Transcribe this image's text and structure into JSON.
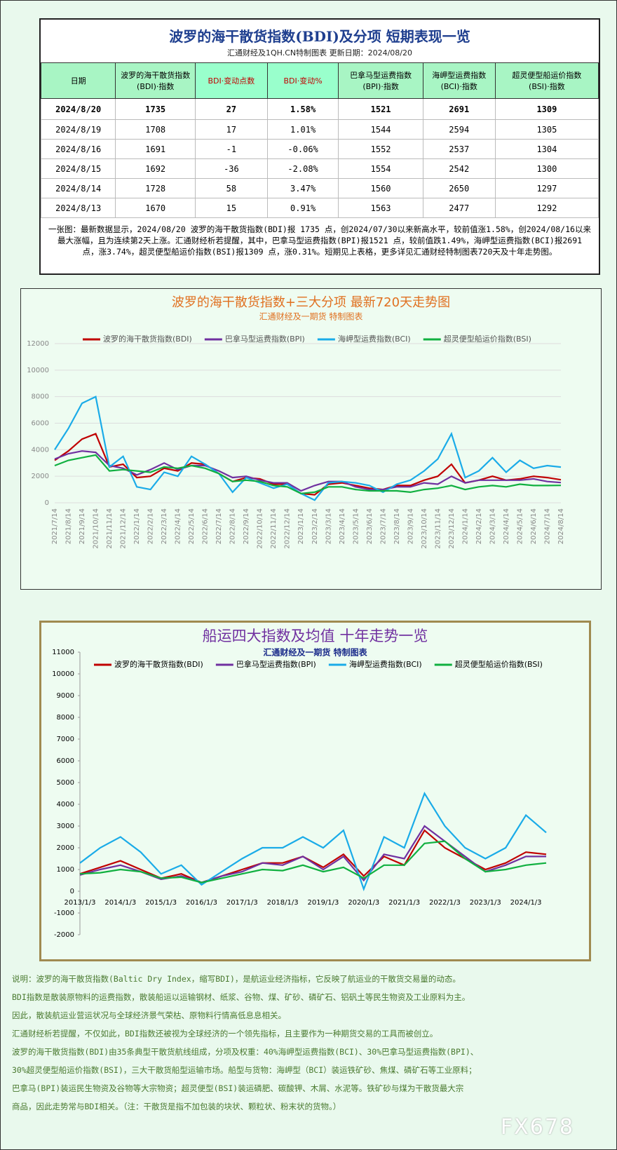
{
  "header": {
    "title": "波罗的海干散货指数(BDI)及分项  短期表现一览",
    "subtitle": "汇通财经及1QH.CN特制图表     更新日期：2024/08/20"
  },
  "table": {
    "columns": [
      "日期",
      "波罗的海干散货指数\n(BDI)·指数",
      "BDI·变动点数",
      "BDI·变动%",
      "巴拿马型运费指数\n(BPI)·指数",
      "海岬型运费指数\n(BCI)·指数",
      "超灵便型船运价指数\n(BSI)·指数"
    ],
    "rows": [
      [
        "2024/8/20",
        "1735",
        "27",
        "1.58%",
        "1521",
        "2691",
        "1309"
      ],
      [
        "2024/8/19",
        "1708",
        "17",
        "1.01%",
        "1544",
        "2594",
        "1305"
      ],
      [
        "2024/8/16",
        "1691",
        "-1",
        "-0.06%",
        "1552",
        "2537",
        "1304"
      ],
      [
        "2024/8/15",
        "1692",
        "-36",
        "-2.08%",
        "1554",
        "2542",
        "1300"
      ],
      [
        "2024/8/14",
        "1728",
        "58",
        "3.47%",
        "1560",
        "2650",
        "1297"
      ],
      [
        "2024/8/13",
        "1670",
        "15",
        "0.91%",
        "1563",
        "2477",
        "1292"
      ]
    ]
  },
  "summary": "一张图：最新数据显示，2024/08/20 波罗的海干散货指数(BDI)报 1735 点，创2024/07/30以来新高水平，较前值涨1.58%，创2024/08/16以来最大涨幅，且为连续第2天上涨。汇通财经析若提醒，其中，巴拿马型运费指数(BPI)报1521 点，较前值跌1.49%，海岬型运费指数(BCI)报2691 点，涨3.74%，超灵便型船运价指数(BSI)报1309 点，涨0.31%。短期见上表格，更多详见汇通财经特制图表720天及十年走势图。",
  "chart_data": [
    {
      "type": "line",
      "title": "波罗的海干散货指数+三大分项  最新720天走势图",
      "subtitle": "汇通财经及一期货  特制图表",
      "categories": [
        "2021/7/14",
        "2021/8/14",
        "2021/9/14",
        "2021/10/14",
        "2021/11/14",
        "2021/12/14",
        "2022/1/14",
        "2022/2/14",
        "2022/3/14",
        "2022/4/14",
        "2022/5/14",
        "2022/6/14",
        "2022/7/14",
        "2022/8/14",
        "2022/9/14",
        "2022/10/14",
        "2022/11/14",
        "2022/12/14",
        "2023/1/14",
        "2023/2/14",
        "2023/3/14",
        "2023/4/14",
        "2023/5/14",
        "2023/6/14",
        "2023/7/14",
        "2023/8/14",
        "2023/9/14",
        "2023/10/14",
        "2023/11/14",
        "2023/12/14",
        "2024/1/14",
        "2024/2/14",
        "2024/3/14",
        "2024/4/14",
        "2024/5/14",
        "2024/6/14",
        "2024/7/14",
        "2024/8/14"
      ],
      "series": [
        {
          "name": "波罗的海干散货指数(BDI)",
          "color": "#c00000",
          "values": [
            3200,
            3900,
            4800,
            5200,
            2700,
            2900,
            1900,
            2000,
            2600,
            2400,
            3000,
            2900,
            2200,
            1600,
            1900,
            1800,
            1400,
            1400,
            700,
            600,
            1400,
            1500,
            1300,
            1100,
            1000,
            1300,
            1300,
            1700,
            2000,
            2900,
            1500,
            1700,
            2000,
            1700,
            1800,
            2000,
            1900,
            1735
          ]
        },
        {
          "name": "巴拿马型运费指数(BPI)",
          "color": "#7030a0",
          "values": [
            3300,
            3700,
            3900,
            3800,
            2800,
            2600,
            2100,
            2500,
            3000,
            2500,
            2800,
            2800,
            2400,
            1900,
            2000,
            1700,
            1500,
            1500,
            900,
            1300,
            1600,
            1600,
            1200,
            1000,
            1000,
            1200,
            1200,
            1500,
            1400,
            2000,
            1500,
            1700,
            1700,
            1700,
            1700,
            1800,
            1600,
            1521
          ]
        },
        {
          "name": "海岬型运费指数(BCI)",
          "color": "#1aabe8",
          "values": [
            4000,
            5600,
            7500,
            8000,
            2700,
            3500,
            1200,
            1000,
            2300,
            2000,
            3500,
            2900,
            2200,
            800,
            1900,
            1500,
            1100,
            1400,
            700,
            200,
            1500,
            1600,
            1500,
            1300,
            800,
            1400,
            1700,
            2400,
            3300,
            5200,
            1900,
            2400,
            3400,
            2300,
            3200,
            2600,
            2800,
            2691
          ]
        },
        {
          "name": "超灵便型船运价指数(BSI)",
          "color": "#10b040",
          "values": [
            2800,
            3200,
            3400,
            3600,
            2400,
            2500,
            2400,
            2300,
            2700,
            2600,
            2800,
            2600,
            2200,
            1600,
            1700,
            1600,
            1300,
            1200,
            700,
            800,
            1200,
            1200,
            1000,
            900,
            900,
            900,
            800,
            1000,
            1100,
            1300,
            1000,
            1200,
            1300,
            1200,
            1400,
            1300,
            1300,
            1309
          ]
        }
      ],
      "ylim": [
        0,
        12000
      ],
      "yticks": [
        0,
        2000,
        4000,
        6000,
        8000,
        10000,
        12000
      ],
      "grid": true,
      "legend": "top"
    },
    {
      "type": "line",
      "title": "船运四大指数及均值 十年走势一览",
      "subtitle": "汇通财经及一期货 特制图表",
      "categories": [
        "2013/1/3",
        null,
        "2014/1/3",
        null,
        "2015/1/3",
        null,
        "2016/1/3",
        null,
        "2017/1/3",
        null,
        "2018/1/3",
        null,
        "2019/1/3",
        null,
        "2020/1/3",
        null,
        "2021/1/3",
        null,
        "2022/1/3",
        null,
        "2023/1/3",
        null,
        "2024/1/3",
        null
      ],
      "series": [
        {
          "name": "波罗的海干散货指数(BDI)",
          "color": "#c00000",
          "values": [
            800,
            1100,
            1400,
            1000,
            600,
            800,
            400,
            700,
            1000,
            1300,
            1300,
            1600,
            1100,
            1700,
            700,
            1600,
            1200,
            2800,
            2000,
            1500,
            1000,
            1300,
            1800,
            1700
          ]
        },
        {
          "name": "巴拿马型运费指数(BPI)",
          "color": "#7030a0",
          "values": [
            750,
            1000,
            1200,
            900,
            550,
            700,
            400,
            700,
            900,
            1300,
            1200,
            1600,
            1000,
            1600,
            500,
            1700,
            1500,
            3000,
            2300,
            1600,
            900,
            1200,
            1600,
            1600
          ]
        },
        {
          "name": "海岬型运费指数(BCI)",
          "color": "#1aabe8",
          "values": [
            1300,
            2000,
            2500,
            1800,
            800,
            1200,
            300,
            900,
            1500,
            2000,
            2000,
            2500,
            2000,
            2800,
            100,
            2500,
            2000,
            4500,
            3000,
            2000,
            1500,
            2000,
            3500,
            2700
          ]
        },
        {
          "name": "超灵便型船运价指数(BSI)",
          "color": "#10b040",
          "values": [
            800,
            850,
            1000,
            900,
            600,
            650,
            400,
            600,
            800,
            1000,
            950,
            1200,
            900,
            1100,
            600,
            1200,
            1200,
            2200,
            2300,
            1500,
            900,
            1000,
            1200,
            1300
          ]
        }
      ],
      "ylim": [
        -2000,
        11000
      ],
      "yticks": [
        -2000,
        -1000,
        0,
        1000,
        2000,
        3000,
        4000,
        5000,
        6000,
        7000,
        8000,
        9000,
        10000,
        11000
      ],
      "grid": false,
      "legend": "top"
    }
  ],
  "notes": [
    "说明：波罗的海干散货指数(Baltic Dry Index，缩写BDI)，是航运业经济指标，它反映了航运业的干散货交易量的动态。",
    "BDI指数是散装原物料的运费指数，散装船运以运输钢材、纸浆、谷物、煤、矿砂、磷矿石、铝矾土等民生物资及工业原料为主。",
    "因此，散装航运业营运状况与全球经济景气荣枯、原物料行情高低息息相关。",
    "汇通财经析若提醒，不仅如此，BDI指数还被视为全球经济的一个领先指标，且主要作为一种期货交易的工具而被创立。",
    "波罗的海干散货指数(BDI)由35条典型干散货航线组成，分项及权重：40%海岬型运费指数(BCI)、30%巴拿马型运费指数(BPI)、",
    "30%超灵便型船运价指数(BSI)，三大干散货船型运输市场。船型与货物：海岬型（BCI）装运铁矿砂、焦煤、磷矿石等工业原料；",
    "巴拿马(BPI)装运民生物资及谷物等大宗物资；超灵便型(BSI)装运磷肥、碳酸钾、木屑、水泥等。铁矿砂与煤为干散货最大宗",
    "商品，因此走势常与BDI相关。（注：干散货是指不加包装的块状、颗粒状、粉末状的货物。）"
  ],
  "watermark": "FX678"
}
